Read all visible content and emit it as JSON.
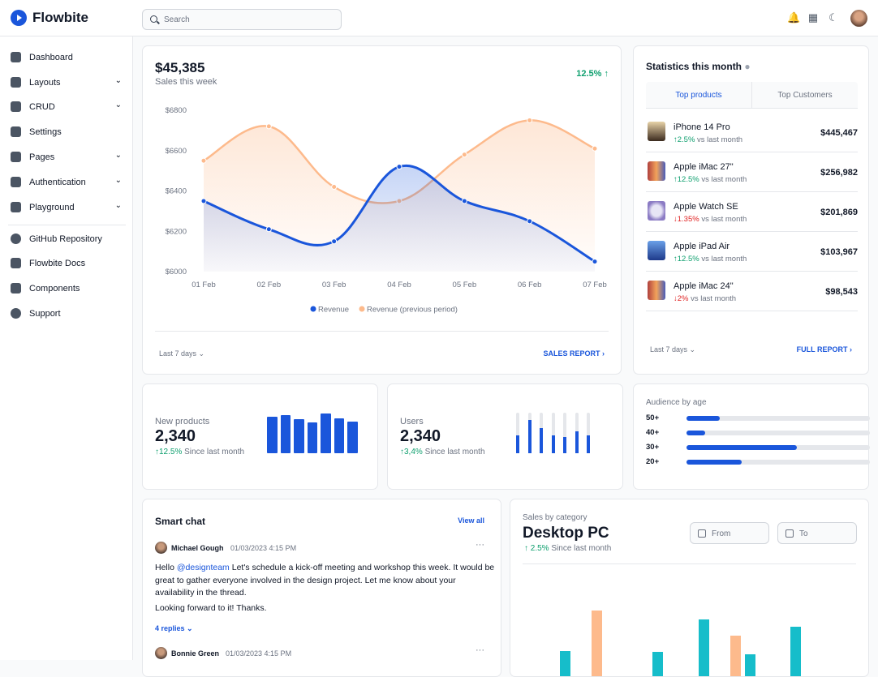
{
  "header": {
    "brand": "Flowbite",
    "search_placeholder": "Search",
    "icons": [
      "bell-icon",
      "apps-grid-icon",
      "moon-icon"
    ]
  },
  "sidebar": {
    "items": [
      {
        "label": "Dashboard",
        "icon": "chart-pie-icon",
        "expandable": false
      },
      {
        "label": "Layouts",
        "icon": "layout-icon",
        "expandable": true
      },
      {
        "label": "CRUD",
        "icon": "table-icon",
        "expandable": true
      },
      {
        "label": "Settings",
        "icon": "gear-icon",
        "expandable": false
      },
      {
        "label": "Pages",
        "icon": "document-icon",
        "expandable": true
      },
      {
        "label": "Authentication",
        "icon": "lock-icon",
        "expandable": true
      },
      {
        "label": "Playground",
        "icon": "cursor-click-icon",
        "expandable": true
      }
    ],
    "secondary": [
      {
        "label": "GitHub Repository",
        "icon": "github-icon"
      },
      {
        "label": "Flowbite Docs",
        "icon": "clipboard-icon"
      },
      {
        "label": "Components",
        "icon": "collection-icon"
      },
      {
        "label": "Support",
        "icon": "lifebuoy-icon"
      }
    ]
  },
  "sales": {
    "amount": "$45,385",
    "subtitle": "Sales this week",
    "change": "12.5%",
    "range": "Last 7 days",
    "report": "SALES REPORT"
  },
  "chart_data": {
    "type": "area",
    "x": [
      "01 Feb",
      "02 Feb",
      "03 Feb",
      "04 Feb",
      "05 Feb",
      "06 Feb",
      "07 Feb"
    ],
    "yticks": [
      "$6800",
      "$6600",
      "$6400",
      "$6200",
      "$6000"
    ],
    "ylim": [
      6000,
      6800
    ],
    "legend": "bottom",
    "grid": false,
    "series": [
      {
        "name": "Revenue",
        "color": "#1a56db",
        "values": [
          6350,
          6210,
          6150,
          6520,
          6350,
          6250,
          6050
        ]
      },
      {
        "name": "Revenue (previous period)",
        "color": "#fdba8c",
        "values": [
          6550,
          6720,
          6420,
          6350,
          6580,
          6750,
          6610
        ]
      }
    ]
  },
  "stats": {
    "title": "Statistics this month",
    "tabs": [
      "Top products",
      "Top Customers"
    ],
    "products": [
      {
        "name": "iPhone 14 Pro",
        "change": "2.5%",
        "dir": "up",
        "note": "vs last month",
        "value": "$445,467"
      },
      {
        "name": "Apple iMac 27\"",
        "change": "12.5%",
        "dir": "up",
        "note": "vs last month",
        "value": "$256,982"
      },
      {
        "name": "Apple Watch SE",
        "change": "1.35%",
        "dir": "down",
        "note": "vs last month",
        "value": "$201,869"
      },
      {
        "name": "Apple iPad Air",
        "change": "12.5%",
        "dir": "up",
        "note": "vs last month",
        "value": "$103,967"
      },
      {
        "name": "Apple iMac 24\"",
        "change": "2%",
        "dir": "down",
        "note": "vs last month",
        "value": "$98,543"
      }
    ],
    "range": "Last 7 days",
    "report": "FULL REPORT"
  },
  "new_products": {
    "label": "New products",
    "value": "2,340",
    "change": "12.5%",
    "note": "Since last month",
    "bars": [
      45,
      47,
      42,
      38,
      49,
      43,
      39
    ]
  },
  "users": {
    "label": "Users",
    "value": "2,340",
    "change": "3,4%",
    "note": "Since last month",
    "bars": [
      0.44,
      0.82,
      0.62,
      0.44,
      0.4,
      0.54,
      0.44
    ]
  },
  "audience": {
    "title": "Audience by age",
    "rows": [
      {
        "label": "50+",
        "pct": 18
      },
      {
        "label": "40+",
        "pct": 10
      },
      {
        "label": "30+",
        "pct": 60
      },
      {
        "label": "20+",
        "pct": 30
      }
    ]
  },
  "chat": {
    "title": "Smart chat",
    "view_all": "View all",
    "messages": [
      {
        "author": "Michael Gough",
        "time": "01/03/2023 4:15 PM",
        "mention": "@designteam",
        "text": "Let's schedule a kick-off meeting and workshop this week. It would be great to gather everyone involved in the design project. Let me know about your availability in the thread.",
        "greeting": "Hello",
        "text2": "Looking forward to it! Thanks.",
        "replies": "4 replies"
      },
      {
        "author": "Bonnie Green",
        "time": "01/03/2023 4:15 PM"
      }
    ]
  },
  "category": {
    "label": "Sales by category",
    "title": "Desktop PC",
    "change": "2.5%",
    "note": "Since last month",
    "from": "From",
    "to": "To",
    "bars": [
      {
        "series": "teal",
        "value": 0.2
      },
      {
        "series": "orange",
        "value": 1.0
      },
      {
        "series": "teal",
        "value": 0.17
      },
      {
        "series": "teal",
        "value": 0.82
      },
      {
        "series": "orange",
        "value": 0.5
      },
      {
        "series": "teal",
        "value": 0.13
      },
      {
        "series": "teal",
        "value": 0.68
      }
    ],
    "colors": {
      "teal": "#16bdca",
      "orange": "#fdba8c"
    }
  }
}
